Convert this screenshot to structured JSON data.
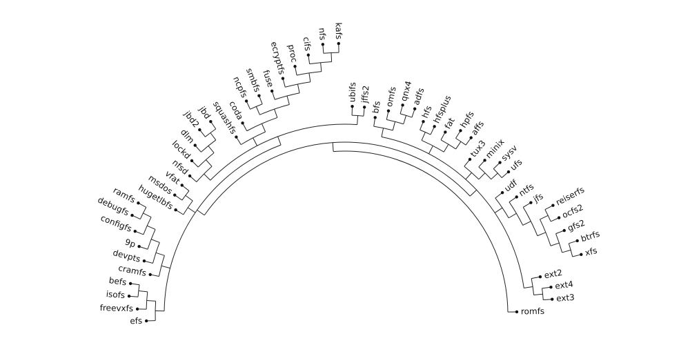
{
  "tree": {
    "children": [
      {
        "children": [
          {
            "children": [
              {
                "children": [
                  {
                    "name": "efs"
                  },
                  {
                    "children": [
                      {
                        "name": "freevxfs"
                      },
                      {
                        "children": [
                          {
                            "name": "isofs"
                          },
                          {
                            "name": "befs"
                          }
                        ]
                      }
                    ]
                  }
                ]
              },
              {
                "children": [
                  {
                    "name": "cramfs"
                  },
                  {
                    "children": [
                      {
                        "name": "devpts"
                      },
                      {
                        "children": [
                          {
                            "name": "9p"
                          },
                          {
                            "children": [
                              {
                                "name": "configfs"
                              },
                              {
                                "children": [
                                  {
                                    "name": "debugfs"
                                  },
                                  {
                                    "name": "ramfs"
                                  }
                                ]
                              }
                            ]
                          }
                        ]
                      }
                    ]
                  }
                ]
              },
              {
                "children": [
                  {
                    "name": "hugetlbfs"
                  },
                  {
                    "children": [
                      {
                        "name": "msdos"
                      },
                      {
                        "name": "vfat"
                      }
                    ]
                  }
                ]
              },
              {
                "children": [
                  {
                    "children": [
                      {
                        "name": "nfsd"
                      },
                      {
                        "children": [
                          {
                            "name": "lockd"
                          },
                          {
                            "children": [
                              {
                                "name": "dlm"
                              },
                              {
                                "children": [
                                  {
                                    "name": "jbd2"
                                  },
                                  {
                                    "name": "jbd"
                                  }
                                ]
                              }
                            ]
                          }
                        ]
                      }
                    ]
                  },
                  {
                    "children": [
                      {
                        "name": "squashfs"
                      },
                      {
                        "children": [
                          {
                            "name": "coda"
                          },
                          {
                            "children": [
                              {
                                "children": [
                                  {
                                    "name": "ncpfs"
                                  },
                                  {
                                    "name": "smbfs"
                                  }
                                ]
                              },
                              {
                                "children": [
                                  {
                                    "name": "fuse"
                                  },
                                  {
                                    "children": [
                                      {
                                        "name": "ecryptfs"
                                      },
                                      {
                                        "children": [
                                          {
                                            "name": "proc"
                                          },
                                          {
                                            "children": [
                                              {
                                                "name": "cifs"
                                              },
                                              {
                                                "children": [
                                                  {
                                                    "name": "nfs"
                                                  },
                                                  {
                                                    "name": "kafs"
                                                  }
                                                ]
                                              }
                                            ]
                                          }
                                        ]
                                      }
                                    ]
                                  }
                                ]
                              }
                            ]
                          }
                        ]
                      }
                    ]
                  },
                  {
                    "children": [
                      {
                        "name": "ubifs"
                      },
                      {
                        "name": "jffs2"
                      }
                    ]
                  }
                ]
              }
            ]
          },
          {
            "children": [
              {
                "children": [
                  {
                    "name": "bfs"
                  },
                  {
                    "children": [
                      {
                        "name": "omfs"
                      },
                      {
                        "children": [
                          {
                            "name": "qnx4"
                          },
                          {
                            "name": "adfs"
                          }
                        ]
                      }
                    ]
                  }
                ]
              },
              {
                "children": [
                  {
                    "children": [
                      {
                        "name": "hfs"
                      },
                      {
                        "name": "hfsplus"
                      }
                    ]
                  },
                  {
                    "children": [
                      {
                        "name": "fat"
                      },
                      {
                        "children": [
                          {
                            "name": "hpfs"
                          },
                          {
                            "name": "affs"
                          }
                        ]
                      }
                    ]
                  }
                ]
              },
              {
                "children": [
                  {
                    "name": "tux3"
                  },
                  {
                    "children": [
                      {
                        "name": "minix"
                      },
                      {
                        "children": [
                          {
                            "name": "sysv"
                          },
                          {
                            "name": "ufs"
                          }
                        ]
                      }
                    ]
                  }
                ]
              },
              {
                "children": [
                  {
                    "name": "udf"
                  },
                  {
                    "children": [
                      {
                        "name": "ntfs"
                      },
                      {
                        "children": [
                          {
                            "name": "jfs"
                          },
                          {
                            "children": [
                              {
                                "children": [
                                  {
                                    "name": "reiserfs"
                                  },
                                  {
                                    "name": "ocfs2"
                                  }
                                ]
                              },
                              {
                                "children": [
                                  {
                                    "name": "gfs2"
                                  },
                                  {
                                    "children": [
                                      {
                                        "name": "btrfs"
                                      },
                                      {
                                        "name": "xfs"
                                      }
                                    ]
                                  }
                                ]
                              }
                            ]
                          }
                        ]
                      }
                    ]
                  }
                ]
              },
              {
                "children": [
                  {
                    "name": "ext2"
                  },
                  {
                    "children": [
                      {
                        "name": "ext4"
                      },
                      {
                        "name": "ext3"
                      }
                    ]
                  }
                ]
              }
            ]
          }
        ]
      },
      {
        "name": "romfs"
      }
    ]
  }
}
